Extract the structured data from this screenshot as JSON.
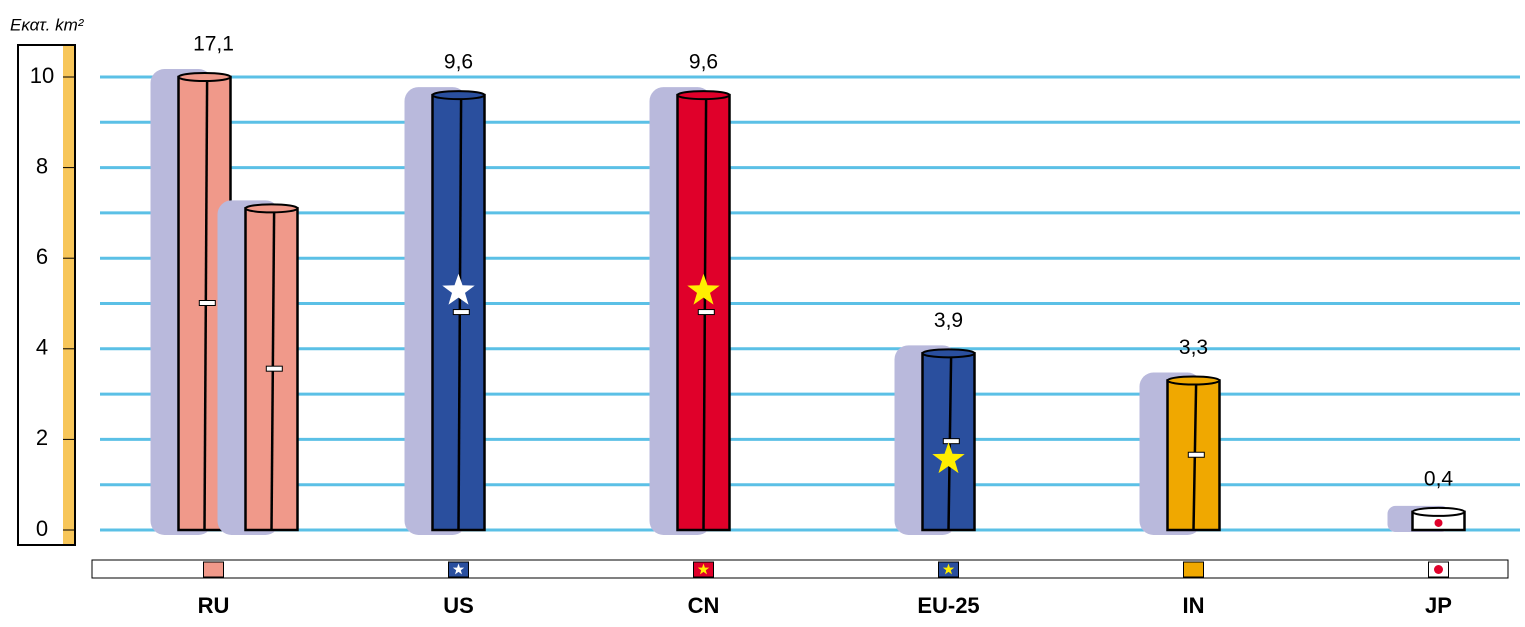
{
  "chart_data": {
    "type": "bar",
    "y_label": "Εκατ. km²",
    "categories": [
      "RU",
      "US",
      "CN",
      "EU-25",
      "IN",
      "JP"
    ],
    "values": [
      17.1,
      9.6,
      9.6,
      3.9,
      3.3,
      0.4
    ],
    "value_labels": [
      "17,1",
      "9,6",
      "9,6",
      "3,9",
      "3,3",
      "0,4"
    ],
    "colors": [
      "#f0998a",
      "#2a4f9e",
      "#e0002a",
      "#2a4f9e",
      "#f0a800",
      "#ffffff"
    ],
    "ylim": [
      0,
      10
    ],
    "yticks": [
      0,
      2,
      4,
      6,
      8,
      10
    ],
    "minor_yticks": [
      1,
      3,
      5,
      7,
      9
    ],
    "grid": true
  }
}
